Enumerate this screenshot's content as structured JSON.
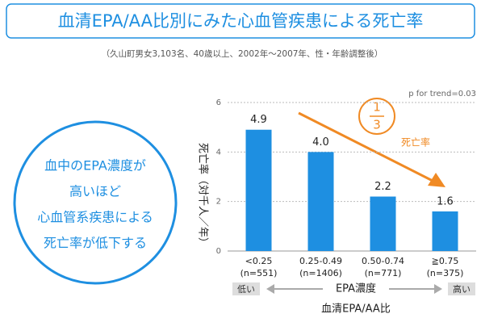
{
  "chart_data": {
    "type": "bar",
    "title": "血清EPA/AA比別にみた心血管疾患による死亡率",
    "subtitle": "（久山町男女3,103名、40歳以上、2002年〜2007年、性・年齢調整後）",
    "callout": [
      "血中のEPA濃度が",
      "高いほど",
      "心血管系疾患による",
      "死亡率が低下する"
    ],
    "y_label": "死亡率（対千人／年）",
    "categories": [
      "<0.25",
      "0.25-0.49",
      "0.50-0.74",
      "≧0.75"
    ],
    "category_counts": [
      "(n=551)",
      "(n=1406)",
      "(n=771)",
      "(n=375)"
    ],
    "values": [
      4.9,
      4.0,
      2.2,
      1.6
    ],
    "value_labels": [
      "4.9",
      "4.0",
      "2.2",
      "1.6"
    ],
    "color": "#1e8fe1",
    "ylim": [
      0,
      6
    ],
    "yticks": [
      0,
      2,
      4,
      6
    ],
    "grid": true,
    "p_trend": "p for trend=0.03",
    "trend_label": "死亡率",
    "fraction": {
      "numerator": "1",
      "denominator": "3"
    },
    "x_axis": {
      "low": "低い",
      "label": "EPA濃度",
      "high": "高い"
    },
    "x_label": "血清EPA/AA比"
  }
}
